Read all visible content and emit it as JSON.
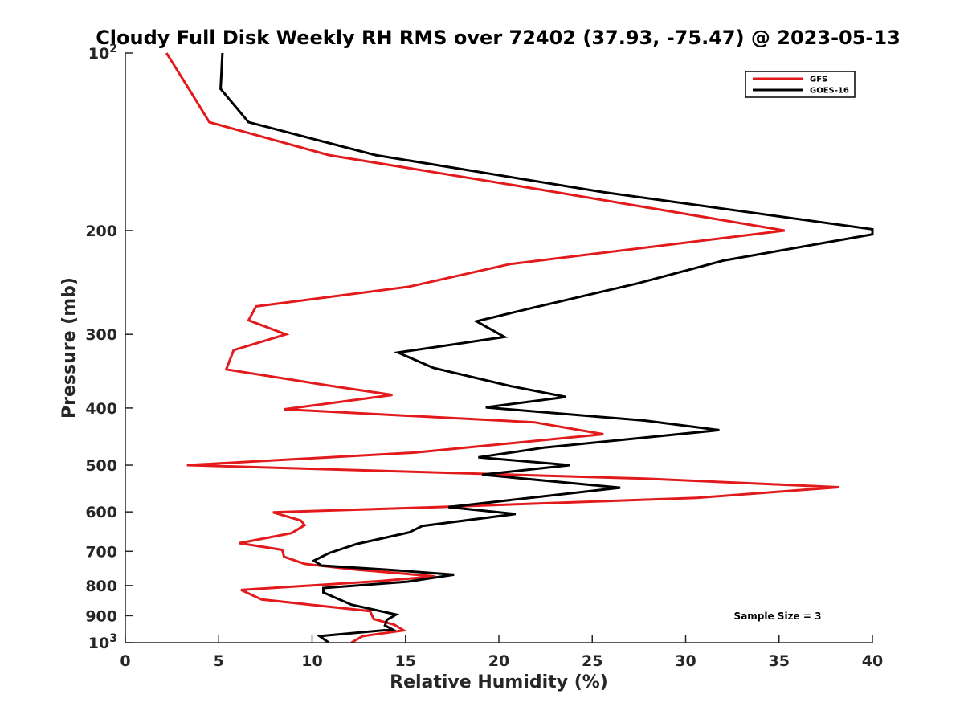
{
  "chart_data": {
    "type": "line",
    "title": "Cloudy Full Disk Weekly RH RMS over 72402 (37.93, -75.47) @ 2023-05-13",
    "xlabel": "Relative Humidity (%)",
    "ylabel": "Pressure (mb)",
    "xlim": [
      0,
      40
    ],
    "ylim": [
      100,
      1000
    ],
    "y_scale": "log",
    "y_reversed": true,
    "grid": false,
    "x_ticks": [
      0,
      5,
      10,
      15,
      20,
      25,
      30,
      35,
      40
    ],
    "y_ticks": [
      {
        "value": 100,
        "base": "10",
        "exp": "2"
      },
      {
        "value": 200,
        "label": "200"
      },
      {
        "value": 300,
        "label": "300"
      },
      {
        "value": 400,
        "label": "400"
      },
      {
        "value": 500,
        "label": "500"
      },
      {
        "value": 600,
        "label": "600"
      },
      {
        "value": 700,
        "label": "700"
      },
      {
        "value": 800,
        "label": "800"
      },
      {
        "value": 900,
        "label": "900"
      },
      {
        "value": 1000,
        "base": "10",
        "exp": "3"
      }
    ],
    "legend_position": "top-right",
    "annotation": "Sample Size = 3",
    "series": [
      {
        "name": "GFS",
        "color": "#e31a1c",
        "points": [
          {
            "rh": 2.2,
            "p": 100
          },
          {
            "rh": 3.4,
            "p": 115
          },
          {
            "rh": 4.5,
            "p": 131
          },
          {
            "rh": 10.9,
            "p": 149
          },
          {
            "rh": 22.0,
            "p": 170
          },
          {
            "rh": 35.3,
            "p": 200
          },
          {
            "rh": 20.6,
            "p": 228
          },
          {
            "rh": 15.2,
            "p": 249
          },
          {
            "rh": 7.0,
            "p": 269
          },
          {
            "rh": 6.6,
            "p": 284
          },
          {
            "rh": 8.6,
            "p": 300
          },
          {
            "rh": 5.8,
            "p": 319
          },
          {
            "rh": 5.4,
            "p": 344
          },
          {
            "rh": 10.8,
            "p": 366
          },
          {
            "rh": 14.3,
            "p": 380
          },
          {
            "rh": 8.5,
            "p": 402
          },
          {
            "rh": 21.9,
            "p": 423
          },
          {
            "rh": 25.6,
            "p": 443
          },
          {
            "rh": 15.5,
            "p": 476
          },
          {
            "rh": 3.3,
            "p": 500
          },
          {
            "rh": 27.8,
            "p": 527
          },
          {
            "rh": 38.2,
            "p": 545
          },
          {
            "rh": 30.6,
            "p": 568
          },
          {
            "rh": 16.7,
            "p": 589
          },
          {
            "rh": 7.9,
            "p": 601
          },
          {
            "rh": 9.4,
            "p": 621
          },
          {
            "rh": 9.6,
            "p": 632
          },
          {
            "rh": 8.9,
            "p": 652
          },
          {
            "rh": 6.1,
            "p": 678
          },
          {
            "rh": 8.4,
            "p": 696
          },
          {
            "rh": 8.5,
            "p": 715
          },
          {
            "rh": 9.6,
            "p": 735
          },
          {
            "rh": 12.2,
            "p": 751
          },
          {
            "rh": 16.6,
            "p": 772
          },
          {
            "rh": 13.7,
            "p": 786
          },
          {
            "rh": 6.2,
            "p": 814
          },
          {
            "rh": 7.3,
            "p": 845
          },
          {
            "rh": 13.1,
            "p": 884
          },
          {
            "rh": 13.3,
            "p": 912
          },
          {
            "rh": 14.4,
            "p": 932
          },
          {
            "rh": 14.9,
            "p": 953
          },
          {
            "rh": 12.7,
            "p": 975
          },
          {
            "rh": 12.1,
            "p": 1000
          }
        ]
      },
      {
        "name": "GOES-16",
        "color": "#000000",
        "points": [
          {
            "rh": 5.2,
            "p": 100
          },
          {
            "rh": 5.1,
            "p": 115
          },
          {
            "rh": 6.6,
            "p": 131
          },
          {
            "rh": 13.4,
            "p": 149
          },
          {
            "rh": 25.5,
            "p": 172
          },
          {
            "rh": 40.0,
            "p": 199
          },
          {
            "rh": 40.0,
            "p": 203
          },
          {
            "rh": 32.0,
            "p": 225
          },
          {
            "rh": 27.4,
            "p": 246
          },
          {
            "rh": 21.7,
            "p": 271
          },
          {
            "rh": 18.8,
            "p": 285
          },
          {
            "rh": 20.3,
            "p": 303
          },
          {
            "rh": 14.6,
            "p": 322
          },
          {
            "rh": 16.5,
            "p": 342
          },
          {
            "rh": 20.6,
            "p": 367
          },
          {
            "rh": 23.6,
            "p": 383
          },
          {
            "rh": 19.3,
            "p": 399
          },
          {
            "rh": 27.8,
            "p": 420
          },
          {
            "rh": 31.8,
            "p": 436
          },
          {
            "rh": 22.4,
            "p": 467
          },
          {
            "rh": 18.9,
            "p": 485
          },
          {
            "rh": 23.8,
            "p": 500
          },
          {
            "rh": 19.1,
            "p": 519
          },
          {
            "rh": 26.5,
            "p": 546
          },
          {
            "rh": 21.9,
            "p": 567
          },
          {
            "rh": 17.3,
            "p": 589
          },
          {
            "rh": 20.9,
            "p": 605
          },
          {
            "rh": 15.9,
            "p": 634
          },
          {
            "rh": 15.2,
            "p": 650
          },
          {
            "rh": 12.4,
            "p": 680
          },
          {
            "rh": 10.9,
            "p": 705
          },
          {
            "rh": 10.1,
            "p": 726
          },
          {
            "rh": 10.5,
            "p": 740
          },
          {
            "rh": 14.0,
            "p": 752
          },
          {
            "rh": 17.6,
            "p": 767
          },
          {
            "rh": 15.1,
            "p": 788
          },
          {
            "rh": 10.6,
            "p": 808
          },
          {
            "rh": 10.6,
            "p": 822
          },
          {
            "rh": 12.1,
            "p": 862
          },
          {
            "rh": 14.5,
            "p": 896
          },
          {
            "rh": 14.0,
            "p": 915
          },
          {
            "rh": 13.9,
            "p": 935
          },
          {
            "rh": 14.3,
            "p": 950
          },
          {
            "rh": 10.4,
            "p": 975
          },
          {
            "rh": 10.9,
            "p": 1000
          }
        ]
      }
    ]
  }
}
